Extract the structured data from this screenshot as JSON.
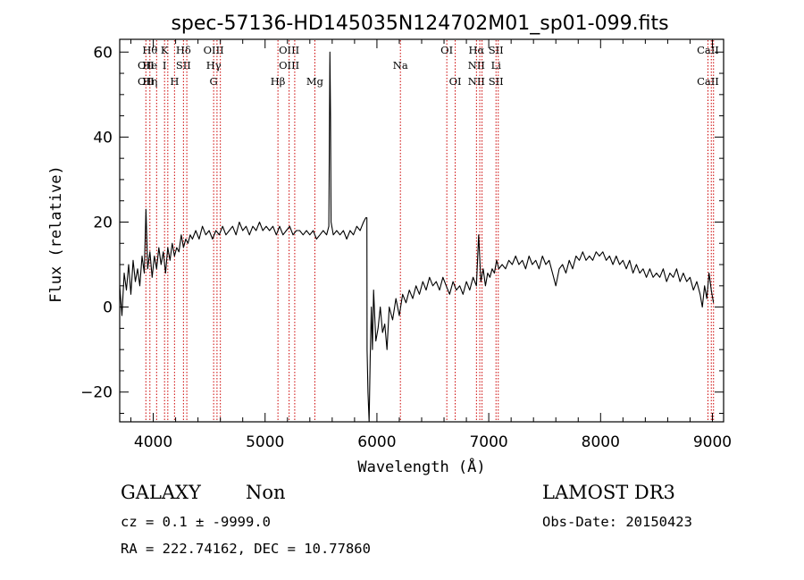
{
  "chart_data": {
    "type": "line",
    "title": "spec-57136-HD145035N124702M01_sp01-099.fits",
    "xlabel": "Wavelength (Å)",
    "ylabel": "Flux (relative)",
    "xlim": [
      3700,
      9100
    ],
    "ylim": [
      -27,
      63
    ],
    "x_ticks": [
      4000,
      5000,
      6000,
      7000,
      8000,
      9000
    ],
    "y_ticks": [
      -20,
      0,
      20,
      40,
      60
    ],
    "grid": false,
    "series": [
      {
        "color": "#000000",
        "points": [
          [
            3700,
            5
          ],
          [
            3720,
            -2
          ],
          [
            3740,
            8
          ],
          [
            3760,
            4
          ],
          [
            3780,
            10
          ],
          [
            3800,
            3
          ],
          [
            3820,
            11
          ],
          [
            3840,
            6
          ],
          [
            3860,
            9
          ],
          [
            3880,
            5
          ],
          [
            3900,
            12
          ],
          [
            3920,
            8
          ],
          [
            3935,
            23
          ],
          [
            3950,
            9
          ],
          [
            3970,
            13
          ],
          [
            3990,
            7
          ],
          [
            4010,
            12
          ],
          [
            4030,
            9
          ],
          [
            4050,
            14
          ],
          [
            4070,
            10
          ],
          [
            4090,
            13
          ],
          [
            4110,
            8
          ],
          [
            4130,
            14
          ],
          [
            4150,
            11
          ],
          [
            4170,
            15
          ],
          [
            4190,
            12
          ],
          [
            4210,
            14
          ],
          [
            4230,
            13
          ],
          [
            4250,
            17
          ],
          [
            4270,
            14
          ],
          [
            4290,
            16
          ],
          [
            4310,
            15
          ],
          [
            4330,
            17
          ],
          [
            4350,
            16
          ],
          [
            4380,
            18
          ],
          [
            4410,
            16
          ],
          [
            4440,
            19
          ],
          [
            4470,
            17
          ],
          [
            4500,
            18
          ],
          [
            4530,
            16
          ],
          [
            4560,
            18
          ],
          [
            4590,
            17
          ],
          [
            4620,
            19
          ],
          [
            4650,
            17
          ],
          [
            4680,
            18
          ],
          [
            4710,
            19
          ],
          [
            4740,
            17
          ],
          [
            4770,
            20
          ],
          [
            4800,
            18
          ],
          [
            4830,
            19
          ],
          [
            4860,
            17
          ],
          [
            4890,
            19
          ],
          [
            4920,
            18
          ],
          [
            4950,
            20
          ],
          [
            4980,
            18
          ],
          [
            5010,
            19
          ],
          [
            5040,
            18
          ],
          [
            5070,
            19
          ],
          [
            5100,
            17
          ],
          [
            5130,
            19
          ],
          [
            5160,
            17
          ],
          [
            5190,
            18
          ],
          [
            5220,
            19
          ],
          [
            5250,
            17
          ],
          [
            5280,
            18
          ],
          [
            5310,
            18
          ],
          [
            5340,
            17
          ],
          [
            5370,
            18
          ],
          [
            5400,
            17
          ],
          [
            5430,
            18
          ],
          [
            5460,
            16
          ],
          [
            5490,
            17
          ],
          [
            5520,
            18
          ],
          [
            5550,
            17
          ],
          [
            5570,
            19
          ],
          [
            5580,
            60
          ],
          [
            5585,
            45
          ],
          [
            5590,
            20
          ],
          [
            5610,
            17
          ],
          [
            5640,
            18
          ],
          [
            5670,
            17
          ],
          [
            5700,
            18
          ],
          [
            5730,
            16
          ],
          [
            5760,
            18
          ],
          [
            5790,
            17
          ],
          [
            5820,
            19
          ],
          [
            5850,
            18
          ],
          [
            5880,
            20
          ],
          [
            5900,
            21
          ],
          [
            5910,
            21
          ],
          [
            5912,
            -10
          ],
          [
            5920,
            -20
          ],
          [
            5930,
            -27
          ],
          [
            5940,
            -12
          ],
          [
            5950,
            0
          ],
          [
            5960,
            -10
          ],
          [
            5970,
            4
          ],
          [
            5990,
            -8
          ],
          [
            6010,
            -5
          ],
          [
            6030,
            0
          ],
          [
            6050,
            -6
          ],
          [
            6070,
            -4
          ],
          [
            6090,
            -10
          ],
          [
            6110,
            0
          ],
          [
            6140,
            -3
          ],
          [
            6170,
            2
          ],
          [
            6200,
            -2
          ],
          [
            6230,
            3
          ],
          [
            6260,
            1
          ],
          [
            6290,
            4
          ],
          [
            6320,
            2
          ],
          [
            6350,
            5
          ],
          [
            6380,
            3
          ],
          [
            6410,
            6
          ],
          [
            6440,
            4
          ],
          [
            6470,
            7
          ],
          [
            6500,
            5
          ],
          [
            6530,
            6
          ],
          [
            6560,
            4
          ],
          [
            6590,
            7
          ],
          [
            6620,
            5
          ],
          [
            6650,
            3
          ],
          [
            6680,
            6
          ],
          [
            6710,
            4
          ],
          [
            6740,
            5
          ],
          [
            6770,
            3
          ],
          [
            6800,
            6
          ],
          [
            6830,
            4
          ],
          [
            6860,
            7
          ],
          [
            6890,
            5
          ],
          [
            6910,
            17
          ],
          [
            6930,
            6
          ],
          [
            6950,
            9
          ],
          [
            6970,
            5
          ],
          [
            6990,
            8
          ],
          [
            7010,
            7
          ],
          [
            7030,
            9
          ],
          [
            7050,
            8
          ],
          [
            7070,
            11
          ],
          [
            7090,
            9
          ],
          [
            7120,
            10
          ],
          [
            7150,
            9
          ],
          [
            7180,
            11
          ],
          [
            7210,
            10
          ],
          [
            7240,
            12
          ],
          [
            7270,
            10
          ],
          [
            7300,
            11
          ],
          [
            7330,
            9
          ],
          [
            7360,
            12
          ],
          [
            7390,
            10
          ],
          [
            7420,
            11
          ],
          [
            7450,
            9
          ],
          [
            7480,
            12
          ],
          [
            7510,
            10
          ],
          [
            7540,
            11
          ],
          [
            7570,
            8
          ],
          [
            7600,
            5
          ],
          [
            7630,
            9
          ],
          [
            7660,
            10
          ],
          [
            7690,
            8
          ],
          [
            7720,
            11
          ],
          [
            7750,
            9
          ],
          [
            7780,
            12
          ],
          [
            7810,
            11
          ],
          [
            7840,
            13
          ],
          [
            7870,
            11
          ],
          [
            7900,
            12
          ],
          [
            7930,
            11
          ],
          [
            7960,
            13
          ],
          [
            7990,
            12
          ],
          [
            8020,
            13
          ],
          [
            8050,
            11
          ],
          [
            8080,
            12
          ],
          [
            8110,
            10
          ],
          [
            8140,
            12
          ],
          [
            8170,
            10
          ],
          [
            8200,
            11
          ],
          [
            8230,
            9
          ],
          [
            8260,
            11
          ],
          [
            8290,
            8
          ],
          [
            8320,
            10
          ],
          [
            8350,
            8
          ],
          [
            8380,
            9
          ],
          [
            8410,
            7
          ],
          [
            8440,
            9
          ],
          [
            8470,
            7
          ],
          [
            8500,
            8
          ],
          [
            8530,
            7
          ],
          [
            8560,
            9
          ],
          [
            8590,
            6
          ],
          [
            8620,
            8
          ],
          [
            8650,
            7
          ],
          [
            8680,
            9
          ],
          [
            8710,
            6
          ],
          [
            8740,
            8
          ],
          [
            8770,
            6
          ],
          [
            8800,
            7
          ],
          [
            8830,
            4
          ],
          [
            8860,
            6
          ],
          [
            8890,
            3
          ],
          [
            8910,
            0
          ],
          [
            8930,
            5
          ],
          [
            8950,
            2
          ],
          [
            8970,
            8
          ],
          [
            8990,
            4
          ],
          [
            9010,
            1
          ]
        ]
      }
    ],
    "line_marker_color": "#cc0000",
    "line_markers": [
      {
        "x": 3934,
        "labels": [
          {
            "text": "OII",
            "row": 1
          },
          {
            "text": "OII",
            "row": 2
          }
        ]
      },
      {
        "x": 3970,
        "labels": [
          {
            "text": "Hθ",
            "row": 0
          },
          {
            "text": "He",
            "row": 1
          },
          {
            "text": "Hη",
            "row": 2
          }
        ]
      },
      {
        "x": 4030,
        "labels": []
      },
      {
        "x": 4101,
        "labels": [
          {
            "text": "K",
            "row": 0
          },
          {
            "text": "I",
            "row": 1
          }
        ]
      },
      {
        "x": 4130,
        "labels": []
      },
      {
        "x": 4190,
        "labels": [
          {
            "text": "H",
            "row": 2
          }
        ]
      },
      {
        "x": 4270,
        "labels": [
          {
            "text": "Hδ",
            "row": 0
          },
          {
            "text": "SII",
            "row": 1
          }
        ]
      },
      {
        "x": 4300,
        "labels": []
      },
      {
        "x": 4540,
        "labels": [
          {
            "text": "OIII",
            "row": 0
          },
          {
            "text": "Hγ",
            "row": 1
          },
          {
            "text": "G",
            "row": 2
          }
        ]
      },
      {
        "x": 4570,
        "labels": []
      },
      {
        "x": 4600,
        "labels": []
      },
      {
        "x": 5115,
        "labels": [
          {
            "text": "Hβ",
            "row": 2
          }
        ]
      },
      {
        "x": 5215,
        "labels": [
          {
            "text": "OIII",
            "row": 0
          },
          {
            "text": "OIII",
            "row": 1
          }
        ]
      },
      {
        "x": 5265,
        "labels": []
      },
      {
        "x": 5445,
        "labels": [
          {
            "text": "Mg",
            "row": 2
          }
        ]
      },
      {
        "x": 6210,
        "labels": [
          {
            "text": "Na",
            "row": 1
          }
        ]
      },
      {
        "x": 6625,
        "labels": [
          {
            "text": "OI",
            "row": 0
          }
        ]
      },
      {
        "x": 6700,
        "labels": [
          {
            "text": "OI",
            "row": 2
          }
        ]
      },
      {
        "x": 6890,
        "labels": [
          {
            "text": "Hα",
            "row": 0
          },
          {
            "text": "NII",
            "row": 1
          },
          {
            "text": "NII",
            "row": 2
          }
        ]
      },
      {
        "x": 6920,
        "labels": []
      },
      {
        "x": 6940,
        "labels": []
      },
      {
        "x": 7065,
        "labels": [
          {
            "text": "SII",
            "row": 0
          },
          {
            "text": "Li",
            "row": 1
          },
          {
            "text": "SII",
            "row": 2
          }
        ]
      },
      {
        "x": 7085,
        "labels": []
      },
      {
        "x": 8960,
        "labels": [
          {
            "text": "CaII",
            "row": 0
          },
          {
            "text": "CaII",
            "row": 2
          }
        ]
      },
      {
        "x": 8990,
        "labels": []
      },
      {
        "x": 9010,
        "labels": []
      }
    ]
  },
  "footer": {
    "class_label": "GALAXY",
    "subclass_label": "Non",
    "survey": "LAMOST DR3",
    "cz": "cz = 0.1 ± -9999.0",
    "obs_date": "Obs-Date: 20150423",
    "coords": "RA = 222.74162, DEC =  10.77860"
  }
}
